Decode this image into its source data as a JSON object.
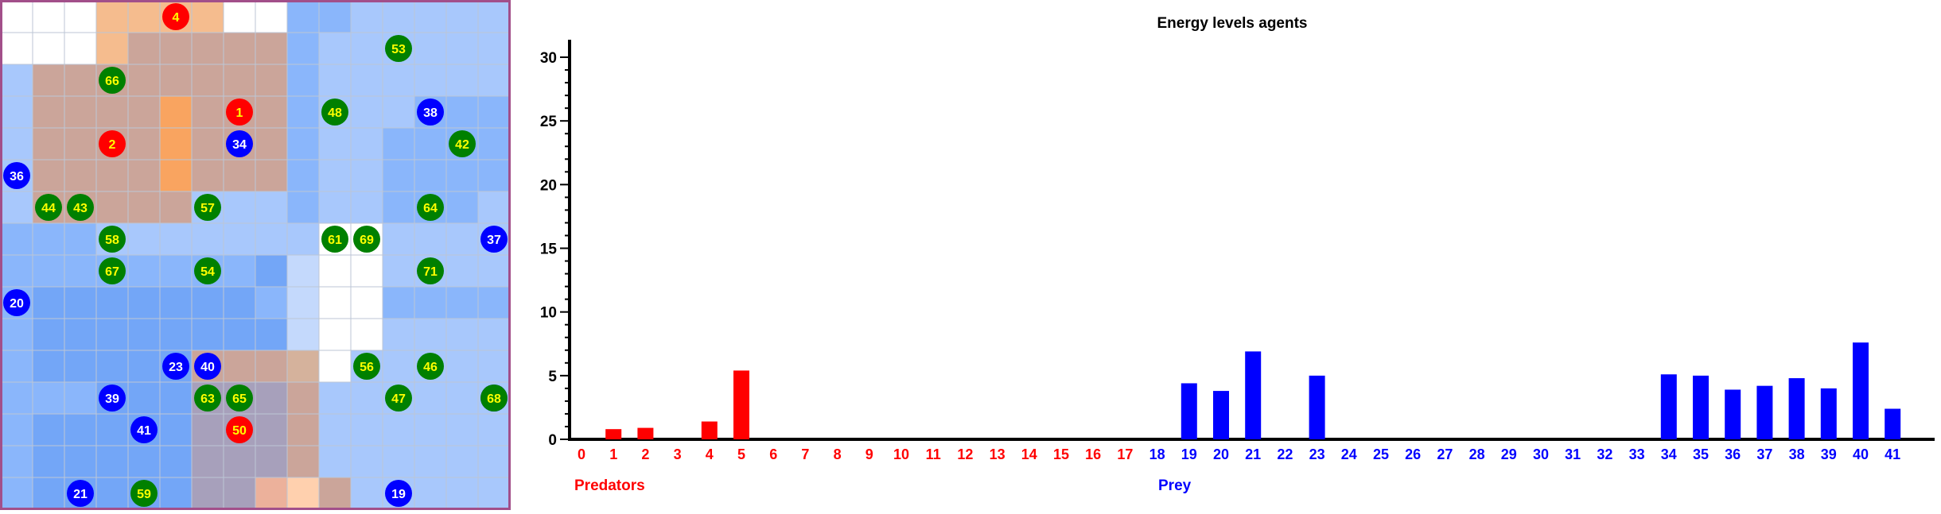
{
  "grid": {
    "size": 16,
    "border_color": "#a24f8a",
    "grid_line_color": "#bcc6d6",
    "colors": {
      "W": "#ffffff",
      "a": "#c4d9fc",
      "b": "#a8c8fc",
      "c": "#8ab6fb",
      "d": "#73a6f7",
      "e": "#5f99f5",
      "o": "#f9a460",
      "p": "#f5bc8e",
      "q": "#d5b29c",
      "r": "#cba59a",
      "s": "#d2a488",
      "t": "#b4a3b3",
      "u": "#a7a0bb",
      "v": "#9d9fc4",
      "y": "#ffd0ae",
      "z": "#ecb19b"
    },
    "rows": [
      "WWWppppWWccbbbbb",
      "WWWprrrrrcbbbbbb",
      "brrrrrrrrcbbbbbb",
      "brrrrorrrcbbbccc",
      "brrrrorrrcbbcccc",
      "brrrrorrrcbbcccc",
      "brrrrrbbbcbbcccb",
      "cccbbbbbbbWWbbbb",
      "ccccccccdaWWbbbb",
      "cdddddddcaWWcccc",
      "cddddddddaWWbbbb",
      "cdddddrrrqWbbbbb",
      "cccddduuurbbbbbb",
      "cddddduuurbbbbbb",
      "cddddduuurbbbbbb",
      "cddddduuzyrbbbbb"
    ],
    "agents": [
      {
        "id": "4",
        "type": "predator",
        "col": 5,
        "row": 0
      },
      {
        "id": "53",
        "type": "plant",
        "col": 12,
        "row": 1
      },
      {
        "id": "66",
        "type": "plant",
        "col": 3,
        "row": 2
      },
      {
        "id": "1",
        "type": "predator",
        "col": 7,
        "row": 3
      },
      {
        "id": "48",
        "type": "plant",
        "col": 10,
        "row": 3
      },
      {
        "id": "38",
        "type": "prey",
        "col": 13,
        "row": 3
      },
      {
        "id": "2",
        "type": "predator",
        "col": 3,
        "row": 4
      },
      {
        "id": "34",
        "type": "prey",
        "col": 7,
        "row": 4
      },
      {
        "id": "42",
        "type": "plant",
        "col": 14,
        "row": 4
      },
      {
        "id": "36",
        "type": "prey",
        "col": 0,
        "row": 5
      },
      {
        "id": "44",
        "type": "plant",
        "col": 1,
        "row": 6
      },
      {
        "id": "43",
        "type": "plant",
        "col": 2,
        "row": 6
      },
      {
        "id": "57",
        "type": "plant",
        "col": 6,
        "row": 6
      },
      {
        "id": "64",
        "type": "plant",
        "col": 13,
        "row": 6
      },
      {
        "id": "58",
        "type": "plant",
        "col": 3,
        "row": 7
      },
      {
        "id": "61",
        "type": "plant",
        "col": 10,
        "row": 7
      },
      {
        "id": "69",
        "type": "plant",
        "col": 11,
        "row": 7
      },
      {
        "id": "37",
        "type": "prey",
        "col": 15,
        "row": 7
      },
      {
        "id": "67",
        "type": "plant",
        "col": 3,
        "row": 8
      },
      {
        "id": "54",
        "type": "plant",
        "col": 6,
        "row": 8
      },
      {
        "id": "71",
        "type": "plant",
        "col": 13,
        "row": 8
      },
      {
        "id": "20",
        "type": "prey",
        "col": 0,
        "row": 9
      },
      {
        "id": "23",
        "type": "prey",
        "col": 5,
        "row": 11
      },
      {
        "id": "40",
        "type": "prey",
        "col": 6,
        "row": 11
      },
      {
        "id": "56",
        "type": "plant",
        "col": 11,
        "row": 11
      },
      {
        "id": "46",
        "type": "plant",
        "col": 13,
        "row": 11
      },
      {
        "id": "39",
        "type": "prey",
        "col": 3,
        "row": 12
      },
      {
        "id": "63",
        "type": "plant",
        "col": 6,
        "row": 12
      },
      {
        "id": "65",
        "type": "plant",
        "col": 7,
        "row": 12
      },
      {
        "id": "47",
        "type": "plant",
        "col": 12,
        "row": 12
      },
      {
        "id": "35",
        "type": "prey",
        "col": 15,
        "row": 12
      },
      {
        "id": "68",
        "type": "plant",
        "col": 15,
        "row": 12
      },
      {
        "id": "41",
        "type": "prey",
        "col": 4,
        "row": 13
      },
      {
        "id": "50",
        "type": "predator",
        "col": 7,
        "row": 13
      },
      {
        "id": "21",
        "type": "prey",
        "col": 2,
        "row": 15
      },
      {
        "id": "59",
        "type": "plant",
        "col": 4,
        "row": 15
      },
      {
        "id": "19",
        "type": "prey",
        "col": 12,
        "row": 15
      }
    ],
    "agent_colors": {
      "predator": "#ff0000",
      "prey": "#0000ff",
      "plant": "#008000"
    },
    "label_colors": {
      "predator": "#ffff00",
      "prey": "#ffffff",
      "plant": "#ffff00"
    }
  },
  "chart_data": {
    "type": "bar",
    "title": "Energy levels agents",
    "xlabel": "",
    "ylabel": "",
    "ylim": [
      0,
      31
    ],
    "yticks": [
      0,
      5,
      10,
      15,
      20,
      25,
      30
    ],
    "grid": false,
    "groups": [
      {
        "label": "Predators",
        "color": "#ff0000",
        "categories": [
          "0",
          "1",
          "2",
          "3",
          "4",
          "5",
          "6",
          "7",
          "8",
          "9",
          "10",
          "11",
          "12",
          "13",
          "14",
          "15",
          "16",
          "17"
        ],
        "values": [
          0,
          0.8,
          0.9,
          0,
          1.4,
          5.4,
          0,
          0,
          0,
          0,
          0,
          0,
          0,
          0,
          0,
          0,
          0,
          0
        ]
      },
      {
        "label": "Prey",
        "color": "#0000ff",
        "categories": [
          "18",
          "19",
          "20",
          "21",
          "22",
          "23",
          "24",
          "25",
          "26",
          "27",
          "28",
          "29",
          "30",
          "31",
          "32",
          "33",
          "34",
          "35",
          "36",
          "37",
          "38",
          "39",
          "40",
          "41"
        ],
        "values": [
          0,
          4.4,
          3.8,
          6.9,
          0,
          5.0,
          0,
          0,
          0,
          0,
          0,
          0,
          0,
          0,
          0,
          0,
          5.1,
          5.0,
          3.9,
          4.2,
          4.8,
          4.0,
          7.6,
          2.4
        ]
      }
    ]
  }
}
